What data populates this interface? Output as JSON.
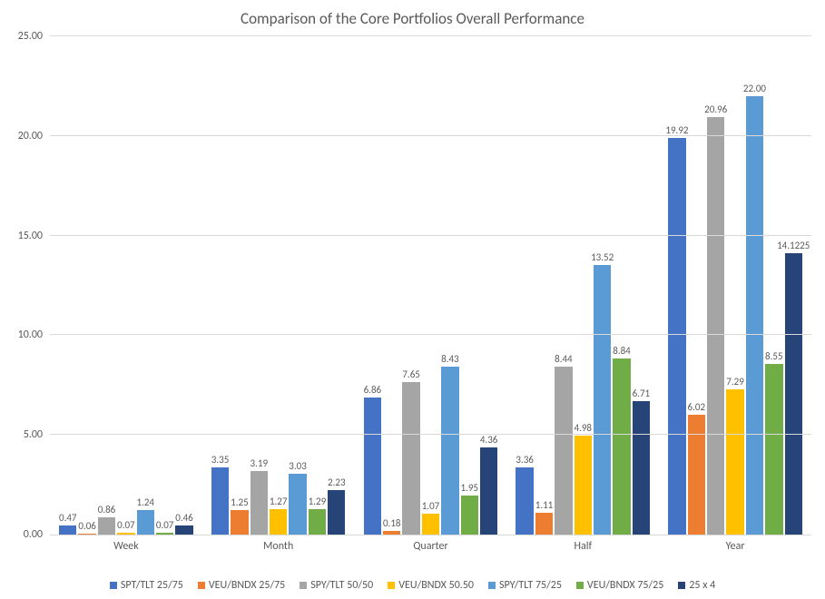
{
  "chart": {
    "type": "bar",
    "title": "Comparison of the Core Portfolios Overall Performance",
    "title_fontsize": 17,
    "label_fontsize": 12,
    "value_label_fontsize": 11,
    "background_color": "#ffffff",
    "grid_color": "#d9d9d9",
    "text_color": "#595959",
    "ylim": [
      0,
      25
    ],
    "ytick_step": 5,
    "ytick_format": "0.00",
    "categories": [
      "Week",
      "Month",
      "Quarter",
      "Half",
      "Year"
    ],
    "series": [
      {
        "name": "SPT/TLT 25/75",
        "color": "#4472c4",
        "values": [
          0.47,
          3.35,
          6.86,
          3.36,
          19.92
        ]
      },
      {
        "name": "VEU/BNDX 25/75",
        "color": "#ed7d31",
        "values": [
          0.06,
          1.25,
          0.18,
          1.11,
          6.02
        ]
      },
      {
        "name": "SPY/TLT 50/50",
        "color": "#a5a5a5",
        "values": [
          0.86,
          3.19,
          7.65,
          8.44,
          20.96
        ]
      },
      {
        "name": "VEU/BNDX 50.50",
        "color": "#ffc000",
        "values": [
          0.07,
          1.27,
          1.07,
          4.98,
          7.29
        ]
      },
      {
        "name": "SPY/TLT 75/25",
        "color": "#5b9bd5",
        "values": [
          1.24,
          3.03,
          8.43,
          13.52,
          22.0
        ]
      },
      {
        "name": "VEU/BNDX 75/25",
        "color": "#70ad47",
        "values": [
          0.07,
          1.29,
          1.95,
          8.84,
          8.55
        ]
      },
      {
        "name": "25 x 4",
        "color": "#264478",
        "values": [
          0.46,
          2.23,
          4.36,
          6.71,
          14.1225
        ]
      }
    ],
    "legend_position": "bottom"
  }
}
